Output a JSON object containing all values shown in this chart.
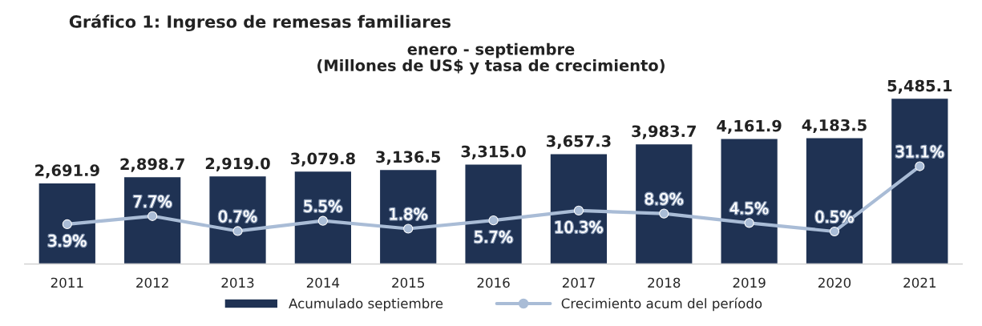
{
  "chart_data": {
    "type": "bar",
    "title": "Gráfico 1: Ingreso de remesas familiares",
    "subtitle": "enero - septiembre\n(Millones de US$ y tasa de crecimiento)",
    "categories": [
      "2011",
      "2012",
      "2013",
      "2014",
      "2015",
      "2016",
      "2017",
      "2018",
      "2019",
      "2020",
      "2021"
    ],
    "series": [
      {
        "name": "Acumulado septiembre",
        "color": "#1f3253",
        "values": [
          2691.9,
          2898.7,
          2919.0,
          3079.8,
          3136.5,
          3315.0,
          3657.3,
          3983.7,
          4161.9,
          4183.5,
          5485.1
        ],
        "value_labels": [
          "2,691.9",
          "2,898.7",
          "2,919.0",
          "3,079.8",
          "3,136.5",
          "3,315.0",
          "3,657.3",
          "3,983.7",
          "4,161.9",
          "4,183.5",
          "5,485.1"
        ]
      },
      {
        "name": "Crecimiento acum del período",
        "type": "line",
        "axis": "y2",
        "color": "#a9bcd6",
        "marker": "circle",
        "values": [
          3.9,
          7.7,
          0.7,
          5.5,
          1.8,
          5.7,
          10.3,
          8.9,
          4.5,
          0.5,
          31.1
        ],
        "value_labels": [
          "3.9%",
          "7.7%",
          "0.7%",
          "5.5%",
          "1.8%",
          "5.7%",
          "10.3%",
          "8.9%",
          "4.5%",
          "0.5%",
          "31.1%"
        ]
      }
    ],
    "data_labels": true,
    "legend": "bottom",
    "grid": false
  }
}
